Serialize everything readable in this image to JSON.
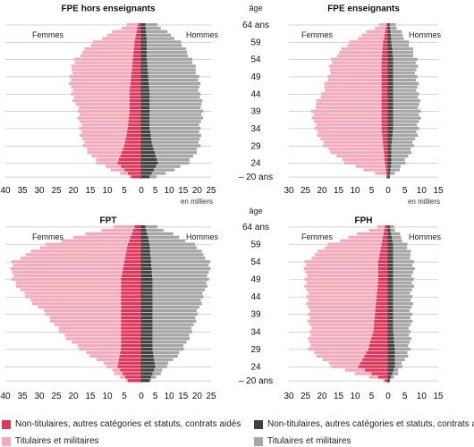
{
  "legend": {
    "women_nontit": "Non-titulaires, autres catégories et statuts, contrats aidés",
    "women_tit": "Titulaires et militaires",
    "men_nontit": "Non-titulaires, autres catégories et statuts, contrats aidés",
    "men_tit": "Titulaires et militaires"
  },
  "colors": {
    "women_nontit": "#e0365a",
    "women_tit": "#f5aabb",
    "men_nontit": "#404040",
    "men_tit": "#a6a6a6",
    "grid": "#bbbbbb"
  },
  "age_axis": {
    "title": "âge",
    "ticks": [
      "64 ans",
      "59",
      "54",
      "49",
      "44",
      "39",
      "34",
      "29",
      "24",
      "– 20 ans"
    ]
  },
  "chart_data": [
    {
      "type": "bar",
      "title": "FPE hors enseignants",
      "unit_label": "en milliers",
      "women_label": "Femmes",
      "men_label": "Hommes",
      "women_ticks": [
        "40",
        "35",
        "30",
        "25",
        "20",
        "15",
        "10",
        "5",
        "0"
      ],
      "men_ticks": [
        "5",
        "10",
        "15",
        "20",
        "25"
      ],
      "women_max": 40,
      "men_max": 25,
      "ages": [
        20,
        24,
        29,
        34,
        39,
        44,
        49,
        54,
        59,
        64
      ],
      "women_nontit": [
        3,
        7,
        5,
        4,
        3.5,
        3.5,
        3,
        2.5,
        2,
        1
      ],
      "women_tit": [
        1,
        6,
        12,
        14,
        15,
        17,
        18,
        17,
        12,
        3
      ],
      "men_nontit": [
        3,
        6,
        4,
        3,
        3,
        3,
        2.5,
        2,
        2,
        1.5
      ],
      "men_tit": [
        3,
        11,
        17,
        18,
        19,
        18,
        18,
        16,
        12,
        4
      ]
    },
    {
      "type": "bar",
      "title": "FPE enseignants",
      "unit_label": "en milliers",
      "women_label": "Femmes",
      "men_label": "Hommes",
      "women_ticks": [
        "30",
        "25",
        "20",
        "15",
        "10",
        "5",
        "0"
      ],
      "men_ticks": [
        "5",
        "10",
        "15"
      ],
      "women_max": 30,
      "men_max": 15,
      "ages": [
        20,
        24,
        29,
        34,
        39,
        44,
        49,
        54,
        59,
        64
      ],
      "women_nontit": [
        0.5,
        1,
        1.5,
        2,
        2,
        2,
        2,
        2,
        1.5,
        0.5
      ],
      "women_tit": [
        0.5,
        12,
        18,
        20,
        21,
        18,
        16,
        15,
        10,
        2
      ],
      "men_nontit": [
        0.5,
        1,
        1,
        1.5,
        1.5,
        1.5,
        1.5,
        1.5,
        1,
        0.5
      ],
      "men_tit": [
        0.5,
        4,
        6.5,
        7.5,
        8,
        7.5,
        7,
        7,
        5,
        1.5
      ]
    },
    {
      "type": "bar",
      "title": "FPT",
      "unit_label": "en milliers",
      "women_label": "Femmes",
      "men_label": "Hommes",
      "women_ticks": [
        "40",
        "35",
        "30",
        "25",
        "20",
        "15",
        "10",
        "5",
        "0"
      ],
      "men_ticks": [
        "5",
        "10",
        "15",
        "20",
        "25"
      ],
      "women_max": 40,
      "men_max": 25,
      "ages": [
        20,
        24,
        29,
        34,
        39,
        44,
        49,
        54,
        59,
        64
      ],
      "women_nontit": [
        4,
        7,
        6,
        6,
        6,
        6,
        6,
        5,
        4,
        2
      ],
      "women_tit": [
        1,
        3,
        12,
        18,
        22,
        28,
        32,
        33,
        24,
        6
      ],
      "men_nontit": [
        3,
        5,
        4,
        4,
        4,
        4,
        4,
        3.5,
        3,
        1.5
      ],
      "men_tit": [
        1,
        4,
        11,
        14,
        16,
        18,
        20,
        21,
        16,
        4
      ]
    },
    {
      "type": "bar",
      "title": "FPH",
      "unit_label": "en milliers",
      "women_label": "Femmes",
      "men_label": "Hommes",
      "women_ticks": [
        "30",
        "25",
        "20",
        "15",
        "10",
        "5",
        "0"
      ],
      "men_ticks": [
        "5",
        "10",
        "15"
      ],
      "women_max": 30,
      "men_max": 15,
      "ages": [
        20,
        24,
        29,
        34,
        39,
        44,
        49,
        54,
        59,
        64
      ],
      "women_nontit": [
        1,
        9,
        6,
        4.5,
        4,
        3.5,
        3,
        3,
        2,
        1
      ],
      "women_tit": [
        1,
        8,
        18,
        19,
        20,
        21,
        22,
        22,
        16,
        2
      ],
      "men_nontit": [
        0.5,
        2,
        2,
        1.5,
        1.5,
        1.5,
        1.5,
        1.5,
        1.5,
        0.5
      ],
      "men_tit": [
        0.5,
        2,
        4.5,
        5,
        5.5,
        5.5,
        6,
        6,
        4,
        1
      ]
    }
  ]
}
